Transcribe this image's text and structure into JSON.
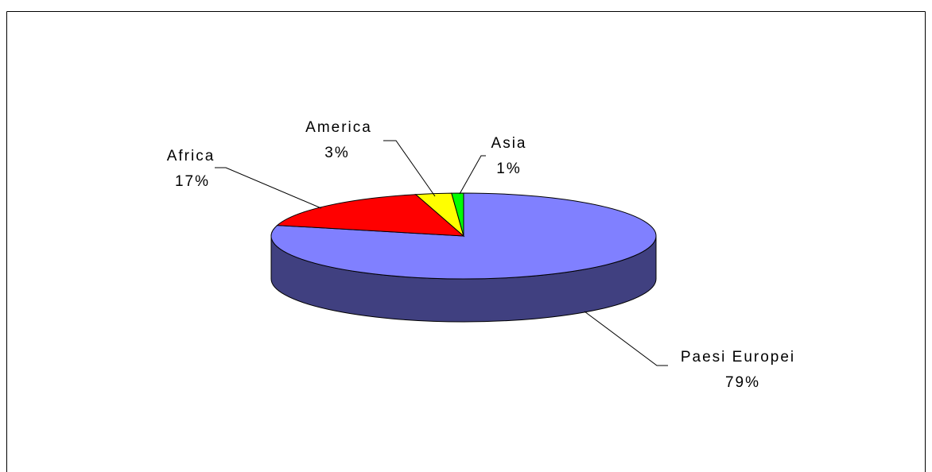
{
  "chart_data": {
    "type": "pie",
    "style": "3d",
    "title": "",
    "slices": [
      {
        "name": "Paesi Europei",
        "value": 79,
        "label": "79%",
        "color": "#8080FF",
        "side_color": "#404080"
      },
      {
        "name": "Africa",
        "value": 17,
        "label": "17%",
        "color": "#FF0000",
        "side_color": "#800000"
      },
      {
        "name": "America",
        "value": 3,
        "label": "3%",
        "color": "#FFFF00",
        "side_color": "#808000"
      },
      {
        "name": "Asia",
        "value": 1,
        "label": "1%",
        "color": "#00FF00",
        "side_color": "#008000"
      }
    ],
    "start": "top",
    "direction": "clockwise",
    "legend": "none"
  }
}
